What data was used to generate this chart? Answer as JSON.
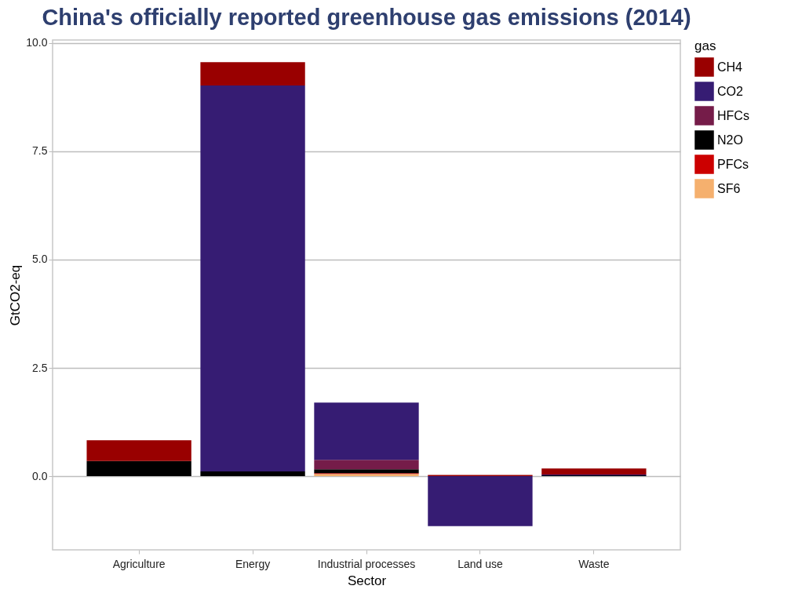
{
  "chart_data": {
    "type": "bar",
    "title": "China's officially reported greenhouse gas emissions (2014)",
    "xlabel": "Sector",
    "ylabel": "GtCO2-eq",
    "legend_title": "gas",
    "categories": [
      "Agriculture",
      "Energy",
      "Industrial processes",
      "Land use",
      "Waste"
    ],
    "stacked": true,
    "series": [
      {
        "name": "SF6",
        "color": "#f5b06e",
        "values": [
          null,
          null,
          0.05,
          null,
          null
        ]
      },
      {
        "name": "PFCs",
        "color": "#cc0000",
        "values": [
          null,
          null,
          0.02,
          null,
          null
        ]
      },
      {
        "name": "N2O",
        "color": "#000000",
        "values": [
          0.35,
          0.11,
          0.09,
          null,
          0.02
        ]
      },
      {
        "name": "HFCs",
        "color": "#751c49",
        "values": [
          null,
          null,
          0.22,
          null,
          null
        ]
      },
      {
        "name": "CO2",
        "color": "#361c73",
        "values": [
          null,
          8.91,
          1.32,
          -1.15,
          0.02
        ]
      },
      {
        "name": "CH4",
        "color": "#990000",
        "values": [
          0.48,
          0.54,
          null,
          0.03,
          0.14
        ]
      }
    ],
    "ylim": [
      -1.7,
      10.07
    ],
    "yticks": [
      {
        "value": 0,
        "label": "0.0"
      },
      {
        "value": 2.5,
        "label": "2.5"
      },
      {
        "value": 5,
        "label": "5.0"
      },
      {
        "value": 7.5,
        "label": "7.5"
      },
      {
        "value": 10,
        "label": "10.0"
      }
    ],
    "grid": "y",
    "legend": "right"
  }
}
